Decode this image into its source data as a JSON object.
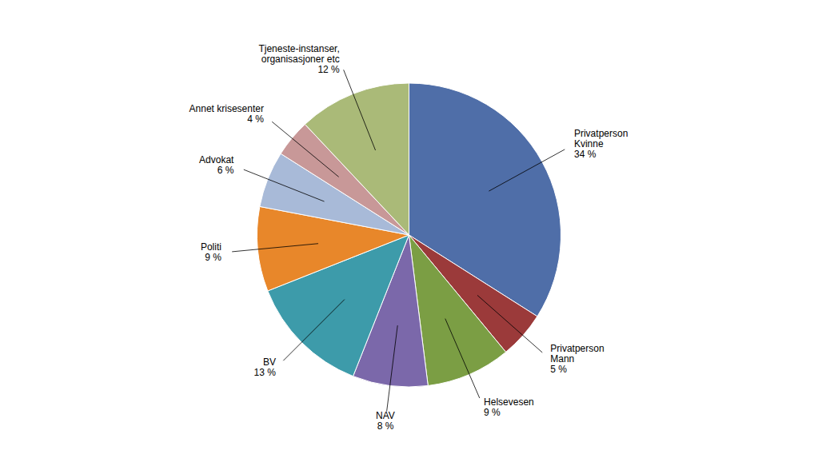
{
  "chart_data": {
    "type": "pie",
    "categories": [
      "Privatperson\nKvinne",
      "Privatperson\nMann",
      "Helsevesen",
      "NAV",
      "BV",
      "Politi",
      "Advokat",
      "Annet krisesenter",
      "Tjeneste-instanser,\norganisasjoner etc"
    ],
    "values": [
      34,
      5,
      9,
      8,
      13,
      9,
      6,
      4,
      12
    ],
    "value_labels": [
      "34 %",
      "5 %",
      "9 %",
      "8 %",
      "13 %",
      "9 %",
      "6 %",
      "4 %",
      "12 %"
    ],
    "colors": [
      "#4F6EA8",
      "#9B3A3A",
      "#7B9E44",
      "#7B68AA",
      "#3D9BAA",
      "#E8872A",
      "#A8BAD8",
      "#C89898",
      "#AABA78"
    ],
    "data_labels": true
  }
}
